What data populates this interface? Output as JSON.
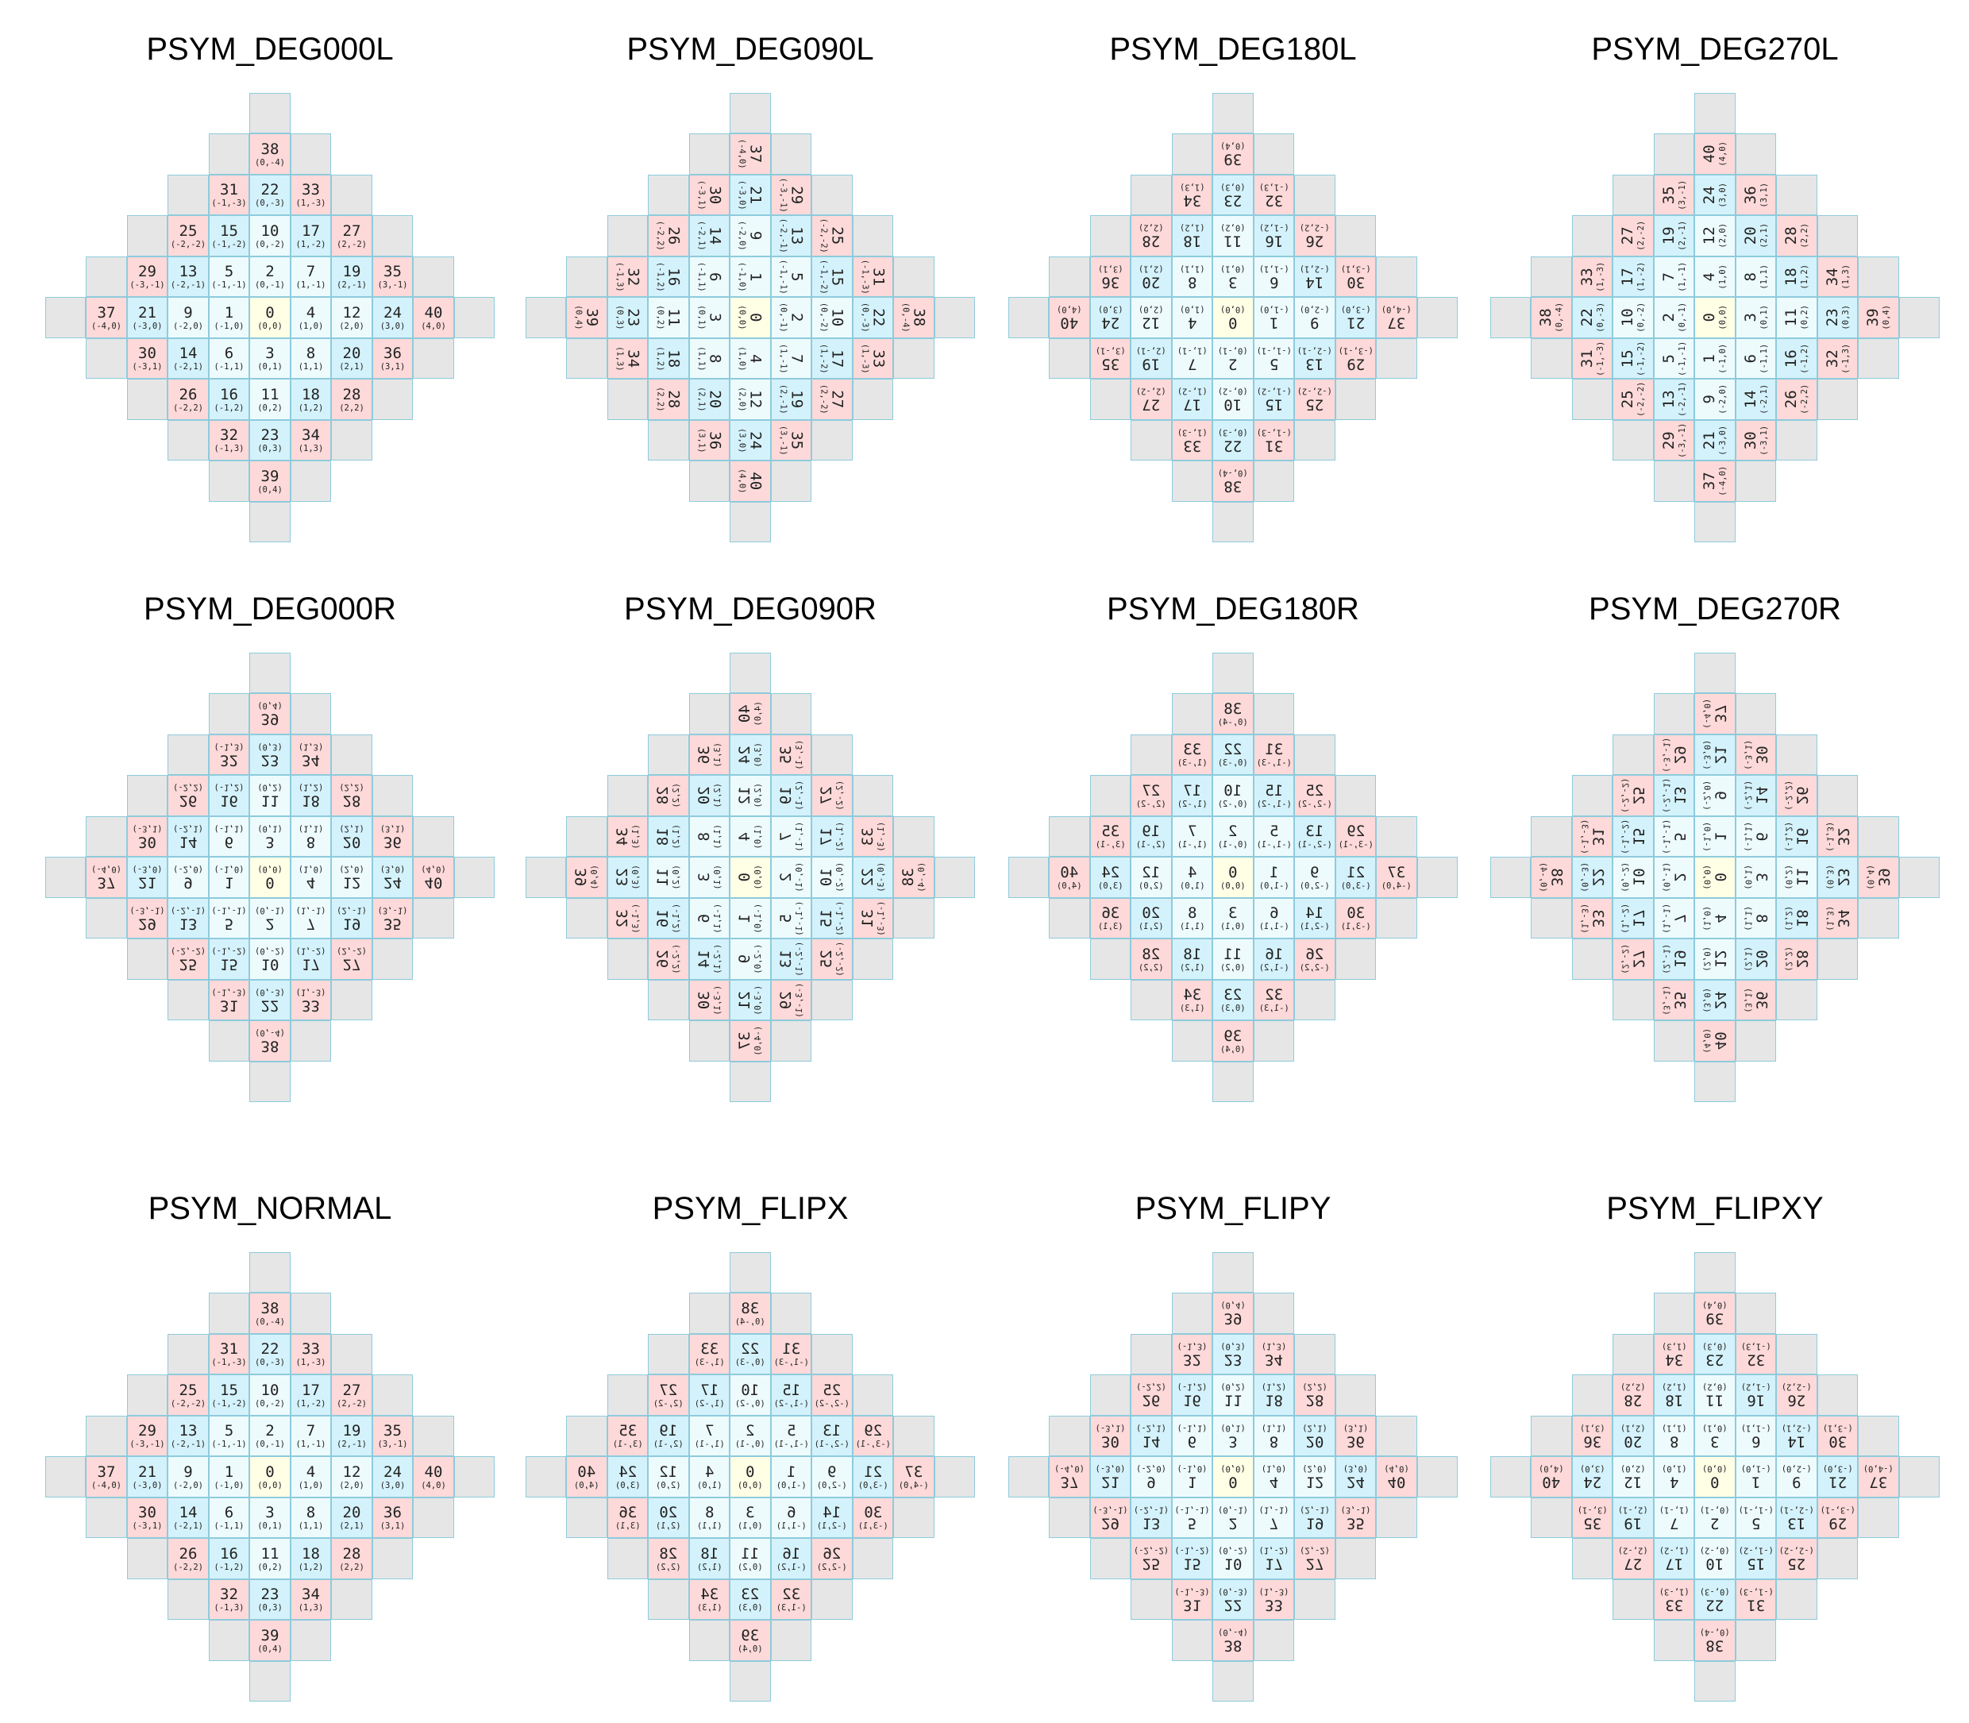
{
  "panels": [
    {
      "id": "deg000l",
      "title": "PSYM_DEG000L",
      "rot": 0,
      "flipX": false,
      "flipY": false
    },
    {
      "id": "deg090l",
      "title": "PSYM_DEG090L",
      "rot": 90,
      "flipX": false,
      "flipY": false
    },
    {
      "id": "deg180l",
      "title": "PSYM_DEG180L",
      "rot": 180,
      "flipX": false,
      "flipY": false
    },
    {
      "id": "deg270l",
      "title": "PSYM_DEG270L",
      "rot": 270,
      "flipX": false,
      "flipY": false
    },
    {
      "id": "deg000r",
      "title": "PSYM_DEG000R",
      "rot": 0,
      "flipX": false,
      "flipY": true
    },
    {
      "id": "deg090r",
      "title": "PSYM_DEG090R",
      "rot": 90,
      "flipX": false,
      "flipY": true
    },
    {
      "id": "deg180r",
      "title": "PSYM_DEG180R",
      "rot": 180,
      "flipX": false,
      "flipY": true
    },
    {
      "id": "deg270r",
      "title": "PSYM_DEG270R",
      "rot": 270,
      "flipX": false,
      "flipY": true
    },
    {
      "id": "normal",
      "title": "PSYM_NORMAL",
      "rot": 0,
      "flipX": false,
      "flipY": false
    },
    {
      "id": "flipx",
      "title": "PSYM_FLIPX",
      "rot": 0,
      "flipX": true,
      "flipY": false
    },
    {
      "id": "flipy",
      "title": "PSYM_FLIPY",
      "rot": 0,
      "flipX": false,
      "flipY": true
    },
    {
      "id": "flipxy",
      "title": "PSYM_FLIPXY",
      "rot": 0,
      "flipX": true,
      "flipY": true
    }
  ],
  "colors": {
    "border": "#8ecbdc",
    "empty": "#e6e6e6",
    "center": "#ffffe6",
    "light": "#edfbfd",
    "blue": "#d4f2fb",
    "pink": "#fdd9d9"
  },
  "cells": [
    {
      "n": "0",
      "xy": [
        0,
        0
      ],
      "c": "(0,0)",
      "t": "center"
    },
    {
      "n": "1",
      "xy": [
        -1,
        0
      ],
      "c": "(-1,0)",
      "t": "light"
    },
    {
      "n": "2",
      "xy": [
        0,
        -1
      ],
      "c": "(0,-1)",
      "t": "light"
    },
    {
      "n": "3",
      "xy": [
        0,
        1
      ],
      "c": "(0,1)",
      "t": "light"
    },
    {
      "n": "4",
      "xy": [
        1,
        0
      ],
      "c": "(1,0)",
      "t": "light"
    },
    {
      "n": "5",
      "xy": [
        -1,
        -1
      ],
      "c": "(-1,-1)",
      "t": "light"
    },
    {
      "n": "6",
      "xy": [
        -1,
        1
      ],
      "c": "(-1,1)",
      "t": "light"
    },
    {
      "n": "7",
      "xy": [
        1,
        -1
      ],
      "c": "(1,-1)",
      "t": "light"
    },
    {
      "n": "8",
      "xy": [
        1,
        1
      ],
      "c": "(1,1)",
      "t": "light"
    },
    {
      "n": "9",
      "xy": [
        -2,
        0
      ],
      "c": "(-2,0)",
      "t": "light"
    },
    {
      "n": "10",
      "xy": [
        0,
        -2
      ],
      "c": "(0,-2)",
      "t": "light"
    },
    {
      "n": "11",
      "xy": [
        0,
        2
      ],
      "c": "(0,2)",
      "t": "light"
    },
    {
      "n": "12",
      "xy": [
        2,
        0
      ],
      "c": "(2,0)",
      "t": "light"
    },
    {
      "n": "13",
      "xy": [
        -2,
        -1
      ],
      "c": "(-2,-1)",
      "t": "blue"
    },
    {
      "n": "14",
      "xy": [
        -2,
        1
      ],
      "c": "(-2,1)",
      "t": "blue"
    },
    {
      "n": "15",
      "xy": [
        -1,
        -2
      ],
      "c": "(-1,-2)",
      "t": "blue"
    },
    {
      "n": "16",
      "xy": [
        -1,
        2
      ],
      "c": "(-1,2)",
      "t": "blue"
    },
    {
      "n": "17",
      "xy": [
        1,
        -2
      ],
      "c": "(1,-2)",
      "t": "blue"
    },
    {
      "n": "18",
      "xy": [
        1,
        2
      ],
      "c": "(1,2)",
      "t": "blue"
    },
    {
      "n": "19",
      "xy": [
        2,
        -1
      ],
      "c": "(2,-1)",
      "t": "blue"
    },
    {
      "n": "20",
      "xy": [
        2,
        1
      ],
      "c": "(2,1)",
      "t": "blue"
    },
    {
      "n": "21",
      "xy": [
        -3,
        0
      ],
      "c": "(-3,0)",
      "t": "blue"
    },
    {
      "n": "22",
      "xy": [
        0,
        -3
      ],
      "c": "(0,-3)",
      "t": "blue"
    },
    {
      "n": "23",
      "xy": [
        0,
        3
      ],
      "c": "(0,3)",
      "t": "blue"
    },
    {
      "n": "24",
      "xy": [
        3,
        0
      ],
      "c": "(3,0)",
      "t": "blue"
    },
    {
      "n": "25",
      "xy": [
        -2,
        -2
      ],
      "c": "(-2,-2)",
      "t": "pink"
    },
    {
      "n": "26",
      "xy": [
        -2,
        2
      ],
      "c": "(-2,2)",
      "t": "pink"
    },
    {
      "n": "27",
      "xy": [
        2,
        -2
      ],
      "c": "(2,-2)",
      "t": "pink"
    },
    {
      "n": "28",
      "xy": [
        2,
        2
      ],
      "c": "(2,2)",
      "t": "pink"
    },
    {
      "n": "29",
      "xy": [
        -3,
        -1
      ],
      "c": "(-3,-1)",
      "t": "pink"
    },
    {
      "n": "30",
      "xy": [
        -3,
        1
      ],
      "c": "(-3,1)",
      "t": "pink"
    },
    {
      "n": "31",
      "xy": [
        -1,
        -3
      ],
      "c": "(-1,-3)",
      "t": "pink"
    },
    {
      "n": "32",
      "xy": [
        -1,
        3
      ],
      "c": "(-1,3)",
      "t": "pink"
    },
    {
      "n": "33",
      "xy": [
        1,
        -3
      ],
      "c": "(1,-3)",
      "t": "pink"
    },
    {
      "n": "34",
      "xy": [
        1,
        3
      ],
      "c": "(1,3)",
      "t": "pink"
    },
    {
      "n": "35",
      "xy": [
        3,
        -1
      ],
      "c": "(3,-1)",
      "t": "pink"
    },
    {
      "n": "36",
      "xy": [
        3,
        1
      ],
      "c": "(3,1)",
      "t": "pink"
    },
    {
      "n": "37",
      "xy": [
        -4,
        0
      ],
      "c": "(-4,0)",
      "t": "pink"
    },
    {
      "n": "38",
      "xy": [
        0,
        -4
      ],
      "c": "(0,-4)",
      "t": "pink"
    },
    {
      "n": "39",
      "xy": [
        0,
        4
      ],
      "c": "(0,4)",
      "t": "pink"
    },
    {
      "n": "40",
      "xy": [
        4,
        0
      ],
      "c": "(4,0)",
      "t": "pink"
    }
  ]
}
